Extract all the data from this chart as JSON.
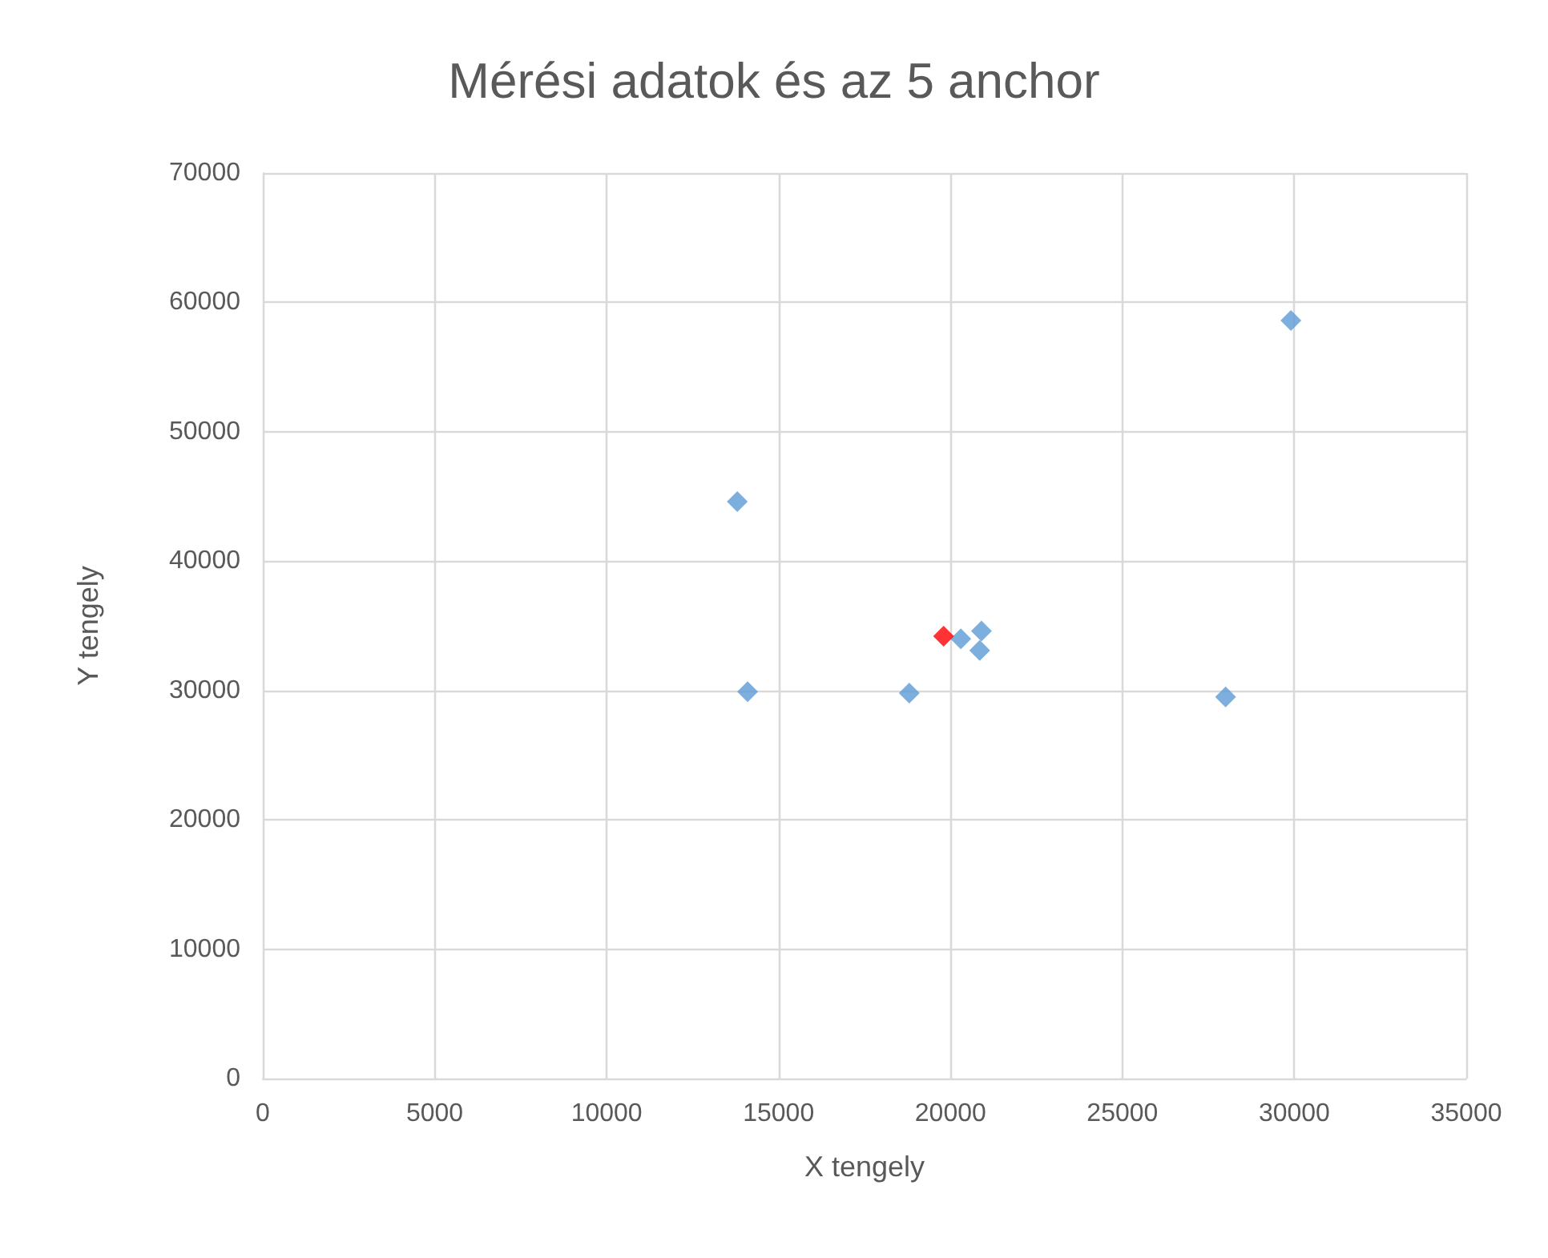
{
  "chart_data": {
    "type": "scatter",
    "title": "Mérési adatok és az 5 anchor",
    "xlabel": "X tengely",
    "ylabel": "Y tengely",
    "series": [
      {
        "color": "#5b9bd5",
        "x": [
          29900,
          13800,
          14100,
          18800,
          28000,
          20300,
          20900,
          20850
        ],
        "values": [
          58600,
          44600,
          29900,
          29800,
          29500,
          34000,
          34600,
          33100
        ]
      },
      {
        "color": "#ff0000",
        "x": [
          19800
        ],
        "values": [
          34200
        ]
      }
    ],
    "xlim": [
      0,
      35000
    ],
    "xticks": [
      0,
      5000,
      10000,
      15000,
      20000,
      25000,
      30000,
      35000
    ],
    "ylim": [
      0,
      70000
    ],
    "yticks": [
      0,
      10000,
      20000,
      30000,
      40000,
      50000,
      60000,
      70000
    ],
    "grid": true,
    "marker": "diamond"
  }
}
